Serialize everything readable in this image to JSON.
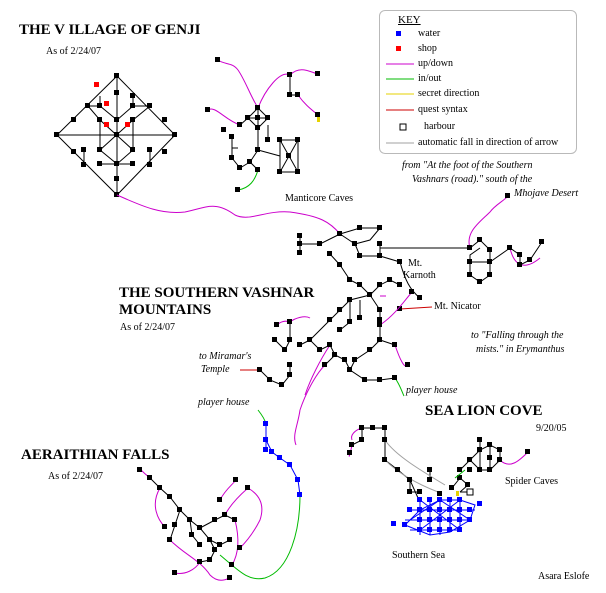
{
  "titles": {
    "genji": "THE V ILLAGE OF GENJI",
    "genji_date": "As of 2/24/07",
    "vashnar_1": "THE SOUTHERN VASHNAR",
    "vashnar_2": "MOUNTAINS",
    "vashnar_date": "As of 2/24/07",
    "falls": "AERAITHIAN FALLS",
    "falls_date": "As of 2/24/07",
    "cove": "SEA LION COVE",
    "cove_date": "9/20/05"
  },
  "labels": {
    "manticore": "Manticore Caves",
    "karnoth_1": "Mt.",
    "karnoth_2": "Karnoth",
    "nicator": "Mt. Nicator",
    "spider": "Spider Caves",
    "southern_sea": "Southern Sea",
    "author": "Asara Eslofe",
    "desert_1": "from \"At the foot of the Southern",
    "desert_2": "Vashnars (road).\" south of the",
    "desert_3": "Mhojave Desert",
    "falling_1": "to \"Falling through the",
    "falling_2": "mists.\" in Erymanthus",
    "miramar_1": "to Miramar's",
    "miramar_2": "Temple",
    "player_house_1": "player house",
    "player_house_2": "player house"
  },
  "legend": {
    "title": "KEY",
    "items": [
      {
        "label": "water",
        "icon": "blue-square-icon"
      },
      {
        "label": "shop",
        "icon": "red-square-icon"
      },
      {
        "label": "up/down",
        "icon": "magenta-line-icon"
      },
      {
        "label": "in/out",
        "icon": "green-line-icon"
      },
      {
        "label": "secret direction",
        "icon": "yellow-line-icon"
      },
      {
        "label": "quest syntax",
        "icon": "red-line-icon"
      },
      {
        "label": "harbour",
        "icon": "harbour-box-icon"
      },
      {
        "label": "automatic fall in direction of arrow",
        "icon": "gray-line-icon"
      }
    ]
  },
  "colors": {
    "room": "#000000",
    "water": "#0000ff",
    "shop": "#ff0000",
    "up_down": "#cc00cc",
    "in_out": "#00bb00",
    "secret": "#e6d200",
    "quest": "#cc0000",
    "fall": "#a0a0a0"
  }
}
